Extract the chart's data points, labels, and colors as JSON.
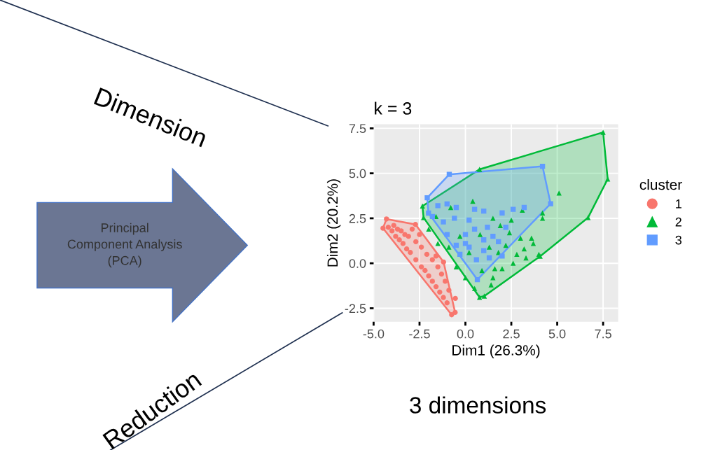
{
  "chart_data": {
    "type": "scatter",
    "title": "k = 3",
    "xlabel": "Dim1 (26.3%)",
    "ylabel": "Dim2 (20.2%)",
    "legend_title": "cluster",
    "legend": "right",
    "grid": true,
    "xlim": [
      -5.0,
      8.32
    ],
    "ylim": [
      -3.25,
      7.73
    ],
    "xticks": [
      {
        "value": -5,
        "label": "-5.0"
      },
      {
        "value": -2.5,
        "label": "-2.5"
      },
      {
        "value": 0,
        "label": "0.0"
      },
      {
        "value": 2.5,
        "label": "2.5"
      },
      {
        "value": 5,
        "label": "5.0"
      },
      {
        "value": 7.5,
        "label": "7.5"
      }
    ],
    "yticks": [
      {
        "value": -2.5,
        "label": "-2.5"
      },
      {
        "value": 0,
        "label": "0.0"
      },
      {
        "value": 2.5,
        "label": "2.5"
      },
      {
        "value": 5,
        "label": "5.0"
      },
      {
        "value": 7.5,
        "label": "7.5"
      }
    ],
    "annotations": [
      "Dimension",
      "Reduction",
      "3 dimensions",
      "Principal\nComponent Analysis\n(PCA)"
    ],
    "series": [
      {
        "type": "area",
        "color": "#f8766d",
        "x": [
          -4.3,
          -2.72,
          -1.19,
          -0.56,
          -0.75,
          -4.49
        ],
        "values": [
          2.46,
          2.16,
          0.07,
          -2.73,
          -2.86,
          1.95
        ]
      },
      {
        "type": "area",
        "color": "#00ba38",
        "x": [
          -2.34,
          0.77,
          7.5,
          7.75,
          6.68,
          4.07,
          1.03,
          0.77,
          -2.28
        ],
        "values": [
          3.18,
          5.22,
          7.28,
          4.68,
          2.54,
          0.39,
          -1.82,
          -1.89,
          2.54
        ]
      },
      {
        "type": "area",
        "color": "#619cff",
        "x": [
          -2.08,
          -0.88,
          4.2,
          4.64,
          0.65,
          -2.01
        ],
        "values": [
          3.64,
          4.94,
          5.39,
          3.31,
          -0.91,
          2.79
        ]
      },
      {
        "name": "1",
        "color": "#f8766d",
        "marker": "circle",
        "x": [
          -4.3,
          -4.49,
          -2.72,
          -1.19,
          -0.56,
          -0.75,
          -4.2,
          -4.0,
          -3.8,
          -3.6,
          -3.4,
          -3.2,
          -3.0,
          -2.7,
          -2.4,
          -2.2,
          -2.0,
          -1.8,
          -1.6,
          -1.4,
          -1.2,
          -1.0,
          -3.9,
          -3.5,
          -3.1,
          -2.9,
          -2.7,
          -2.4,
          -2.1,
          -1.8,
          -1.5,
          -1.3,
          -1.1,
          -0.9,
          -0.55,
          -3.7,
          -3.3,
          -2.5,
          -1.6
        ],
        "values": [
          2.46,
          1.95,
          2.16,
          0.07,
          -2.73,
          -2.86,
          2.0,
          1.8,
          1.5,
          1.3,
          1.1,
          0.8,
          0.6,
          0.2,
          -0.2,
          -0.4,
          -0.7,
          -1.0,
          -1.3,
          -1.6,
          -1.9,
          -2.2,
          2.1,
          1.8,
          1.5,
          1.9,
          1.2,
          0.9,
          0.5,
          0.2,
          -0.2,
          -0.6,
          -1.0,
          -1.5,
          -1.95,
          1.9,
          1.6,
          1.6,
          0.4
        ]
      },
      {
        "name": "2",
        "color": "#00ba38",
        "marker": "triangle",
        "x": [
          -2.34,
          0.77,
          7.5,
          7.75,
          6.68,
          4.07,
          1.03,
          0.77,
          -2.28,
          5.1,
          4.2,
          3.1,
          2.5,
          1.5,
          0.4,
          -0.8,
          -1.6,
          1.9,
          2.4,
          3.0,
          3.6,
          3.7,
          4.0,
          3.3,
          2.6,
          2.0,
          1.5,
          1.4,
          0.5,
          0.0,
          -0.5,
          -0.9,
          -1.5,
          -2.0,
          0.9,
          1.6,
          1.8,
          2.2,
          0.2,
          -0.3,
          3.2,
          2.8,
          1.3,
          0.8,
          4.2
        ],
        "values": [
          3.18,
          5.22,
          7.28,
          4.68,
          2.54,
          0.39,
          -1.82,
          -1.89,
          2.54,
          3.9,
          2.8,
          2.95,
          2.4,
          2.5,
          3.45,
          3.1,
          2.6,
          2.1,
          1.7,
          1.4,
          1.4,
          1.1,
          0.5,
          0.3,
          0.0,
          -0.3,
          -0.8,
          -1.2,
          -1.4,
          -0.8,
          -0.2,
          0.9,
          1.1,
          1.9,
          -0.4,
          -0.3,
          0.6,
          1.0,
          0.6,
          1.5,
          0.8,
          0.5,
          0.9,
          1.6,
          2.5
        ]
      },
      {
        "name": "3",
        "color": "#619cff",
        "marker": "square",
        "x": [
          -2.08,
          -0.88,
          4.2,
          4.64,
          0.65,
          -2.01,
          -1.5,
          -1.0,
          -0.5,
          0.5,
          1.0,
          2.0,
          2.6,
          3.2,
          -1.8,
          -1.2,
          -0.6,
          0.2,
          1.2,
          2.2,
          -1.0,
          0.0,
          1.0,
          1.8,
          -0.5,
          0.2,
          1.0,
          0.0,
          -0.3,
          0.6,
          1.3,
          2.0,
          1.5,
          0.5
        ],
        "values": [
          3.64,
          4.94,
          5.39,
          3.31,
          -0.91,
          2.79,
          3.2,
          3.3,
          3.1,
          3.0,
          2.9,
          2.8,
          3.0,
          3.1,
          2.6,
          2.3,
          2.5,
          2.4,
          2.0,
          2.0,
          1.6,
          1.6,
          1.3,
          1.2,
          1.0,
          0.9,
          0.7,
          1.1,
          0.5,
          0.2,
          0.3,
          0.4,
          1.5,
          1.9
        ]
      }
    ]
  }
}
